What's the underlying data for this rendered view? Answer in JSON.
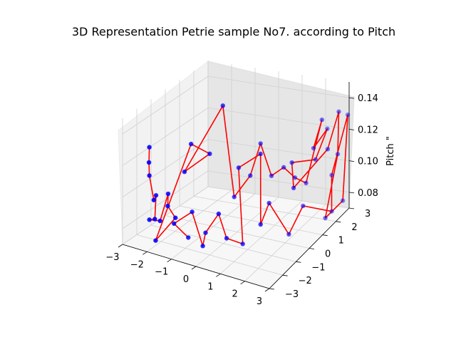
{
  "chart_data": {
    "type": "scatter3d",
    "title": "3D Representation Petrie sample No7. according to Pitch",
    "xlabel": "",
    "ylabel": "",
    "zlabel": "Pitch \"",
    "x_ticks": [
      "−3",
      "−2",
      "−1",
      "0",
      "1",
      "2",
      "3"
    ],
    "y_ticks": [
      "−3",
      "−2",
      "−1",
      "0",
      "1",
      "2",
      "3"
    ],
    "z_ticks": [
      "0.08",
      "0.10",
      "0.12",
      "0.14"
    ],
    "xlim": [
      -3,
      3
    ],
    "ylim": [
      -3,
      3
    ],
    "zlim": [
      0.07,
      0.15
    ],
    "grid": true,
    "marker_color": "#0000ff",
    "line_color": "#ff0000",
    "points": [
      [
        -2.6,
        -1.8,
        0.126
      ],
      [
        -2.5,
        -2.0,
        0.118
      ],
      [
        -2.6,
        -1.8,
        0.108
      ],
      [
        -2.3,
        -2.0,
        0.095
      ],
      [
        -2.5,
        -1.5,
        0.094
      ],
      [
        -2.2,
        -2.1,
        0.084
      ],
      [
        -2.6,
        -1.8,
        0.08
      ],
      [
        -2.1,
        -1.9,
        0.082
      ],
      [
        -2.0,
        -1.5,
        0.097
      ],
      [
        -1.9,
        -1.7,
        0.091
      ],
      [
        -1.7,
        -1.5,
        0.083
      ],
      [
        -2.4,
        -1.7,
        0.067
      ],
      [
        -1.4,
        -0.9,
        0.127
      ],
      [
        -0.8,
        -0.6,
        0.121
      ],
      [
        -1.5,
        -1.2,
        0.111
      ],
      [
        -0.6,
        0.0,
        0.148
      ],
      [
        -0.3,
        0.3,
        0.089
      ],
      [
        0.2,
        0.6,
        0.102
      ],
      [
        0.4,
        1.0,
        0.12
      ],
      [
        0.8,
        1.1,
        0.1
      ],
      [
        1.2,
        1.3,
        0.105
      ],
      [
        1.5,
        1.6,
        0.097
      ],
      [
        1.8,
        1.9,
        0.092
      ],
      [
        2.3,
        2.2,
        0.131
      ],
      [
        2.0,
        2.1,
        0.113
      ],
      [
        2.3,
        2.6,
        0.122
      ],
      [
        2.2,
        1.9,
        0.108
      ],
      [
        1.6,
        1.2,
        0.11
      ],
      [
        1.9,
        0.8,
        0.098
      ],
      [
        2.6,
        2.1,
        0.114
      ],
      [
        2.9,
        2.4,
        0.136
      ],
      [
        2.8,
        2.5,
        0.108
      ],
      [
        2.5,
        2.1,
        0.07
      ],
      [
        2.9,
        2.7,
        0.077
      ],
      [
        3.0,
        2.9,
        0.13
      ],
      [
        2.6,
        2.4,
        0.095
      ],
      [
        2.6,
        2.4,
        0.072
      ],
      [
        1.9,
        1.5,
        0.081
      ],
      [
        1.7,
        0.8,
        0.068
      ],
      [
        1.1,
        0.4,
        0.089
      ],
      [
        1.2,
        -0.4,
        0.082
      ],
      [
        0.8,
        0.3,
        0.12
      ],
      [
        0.0,
        0.1,
        0.11
      ],
      [
        0.4,
        -0.3,
        0.066
      ],
      [
        -0.1,
        -0.6,
        0.07
      ],
      [
        -0.2,
        -1.0,
        0.088
      ],
      [
        -0.8,
        -0.9,
        0.073
      ],
      [
        -0.8,
        -1.1,
        0.066
      ],
      [
        -1.3,
        -1.0,
        0.085
      ],
      [
        -1.7,
        -1.6,
        0.08
      ],
      [
        -1.4,
        -1.1,
        0.069
      ]
    ]
  }
}
